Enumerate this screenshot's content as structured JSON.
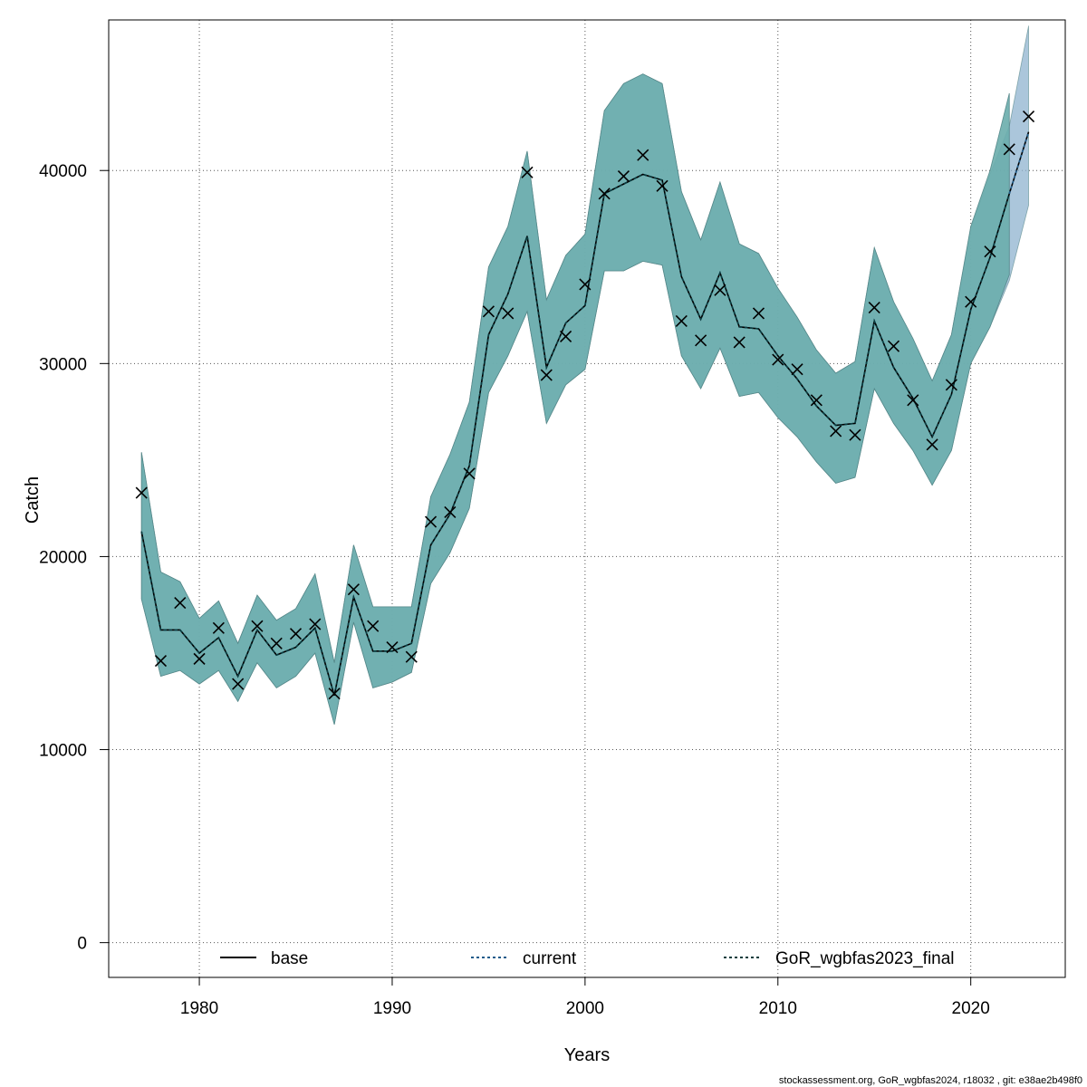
{
  "chart_data": {
    "type": "line",
    "xlabel": "Years",
    "ylabel": "Catch",
    "xlim": [
      1975.3,
      2024.9
    ],
    "ylim": [
      -1800,
      47800
    ],
    "xticks": [
      1980,
      1990,
      2000,
      2010,
      2020
    ],
    "xtick_labels": [
      "1980",
      "1990",
      "2000",
      "2010",
      "2020"
    ],
    "yticks": [
      0,
      10000,
      20000,
      30000,
      40000
    ],
    "ytick_labels": [
      "0",
      "10000",
      "20000",
      "30000",
      "40000"
    ],
    "grid": true,
    "legend_position": "bottom",
    "footer": "stockassessment.org, GoR_wgbfas2024, r18032 , git: e38ae2b498f0",
    "colors": {
      "band_base": "#6aaab1",
      "band_teal": "#6fb5a8",
      "band_blue": "#8fb3cf",
      "line": "#000000",
      "current_line": "#1f5b8a",
      "gor_line": "#0b3d3d"
    },
    "x": [
      1977,
      1978,
      1979,
      1980,
      1981,
      1982,
      1983,
      1984,
      1985,
      1986,
      1987,
      1988,
      1989,
      1990,
      1991,
      1992,
      1993,
      1994,
      1995,
      1996,
      1997,
      1998,
      1999,
      2000,
      2001,
      2002,
      2003,
      2004,
      2005,
      2006,
      2007,
      2008,
      2009,
      2010,
      2011,
      2012,
      2013,
      2014,
      2015,
      2016,
      2017,
      2018,
      2019,
      2020,
      2021,
      2022,
      2023
    ],
    "observed": [
      23300,
      14600,
      17600,
      14700,
      16300,
      13400,
      16400,
      15500,
      16000,
      16500,
      12900,
      18300,
      16400,
      15300,
      14800,
      21800,
      22300,
      24300,
      32700,
      32600,
      39900,
      29400,
      31400,
      34100,
      38800,
      39700,
      40800,
      39200,
      32200,
      31200,
      33800,
      31100,
      32600,
      30200,
      29700,
      28100,
      26500,
      26300,
      32900,
      30900,
      28100,
      25800,
      28900,
      33200,
      35800,
      41100,
      42800
    ],
    "series": [
      {
        "name": "base",
        "values": [
          21300,
          16200,
          16200,
          15000,
          15800,
          13800,
          16200,
          14900,
          15300,
          16300,
          12800,
          17900,
          15100,
          15100,
          15500,
          20600,
          22200,
          24700,
          31500,
          33600,
          36600,
          29800,
          32100,
          33000,
          38800,
          39300,
          39800,
          39500,
          34500,
          32300,
          34700,
          31900,
          31800,
          30400,
          29200,
          27800,
          26800,
          26900,
          32200,
          29800,
          28200,
          26200,
          28400,
          32800,
          35500,
          38800,
          42000
        ]
      },
      {
        "name": "current",
        "values": [
          21300,
          16200,
          16200,
          15000,
          15800,
          13800,
          16200,
          14900,
          15300,
          16300,
          12800,
          17900,
          15100,
          15100,
          15500,
          20600,
          22200,
          24700,
          31500,
          33600,
          36600,
          29800,
          32100,
          33000,
          38800,
          39300,
          39800,
          39500,
          34500,
          32300,
          34700,
          31900,
          31800,
          30400,
          29200,
          27800,
          26800,
          26900,
          32200,
          29800,
          28200,
          26200,
          28400,
          32800,
          35500,
          38800,
          42000
        ]
      },
      {
        "name": "GoR_wgbfas2023_final",
        "values": [
          21300,
          16200,
          16200,
          15000,
          15800,
          13800,
          16200,
          14900,
          15300,
          16300,
          12800,
          17900,
          15100,
          15100,
          15500,
          20600,
          22200,
          24700,
          31500,
          33600,
          36600,
          29800,
          32100,
          33000,
          38800,
          39300,
          39800,
          39500,
          34500,
          32300,
          34700,
          31900,
          31800,
          30400,
          29200,
          27800,
          26800,
          26900,
          32200,
          29800,
          28200,
          26200,
          28400,
          32800,
          35500,
          38800,
          null
        ]
      }
    ],
    "ci_base": {
      "lower": [
        17800,
        13800,
        14100,
        13400,
        14100,
        12500,
        14500,
        13200,
        13800,
        15000,
        11300,
        16600,
        13200,
        13500,
        14000,
        18600,
        20200,
        22500,
        28500,
        30400,
        32700,
        26900,
        28900,
        29700,
        34800,
        34800,
        35300,
        35100,
        30400,
        28700,
        30800,
        28300,
        28500,
        27200,
        26200,
        24900,
        23800,
        24100,
        28700,
        26900,
        25500,
        23700,
        25500,
        30000,
        31900,
        34300,
        38200
      ],
      "upper": [
        25400,
        19200,
        18700,
        16800,
        17700,
        15500,
        18000,
        16700,
        17300,
        19100,
        14500,
        20600,
        17400,
        17400,
        17400,
        23100,
        25300,
        28000,
        35000,
        37100,
        41000,
        33300,
        35600,
        36700,
        43100,
        44500,
        45000,
        44500,
        38900,
        36400,
        39400,
        36200,
        35700,
        33900,
        32400,
        30700,
        29500,
        30100,
        36000,
        33200,
        31300,
        29100,
        31500,
        37000,
        39800,
        42300,
        47500
      ]
    },
    "ci_gor": {
      "lower": [
        17800,
        13800,
        14100,
        13400,
        14100,
        12500,
        14500,
        13200,
        13800,
        15000,
        11300,
        16600,
        13200,
        13500,
        14000,
        18600,
        20200,
        22500,
        28500,
        30400,
        32700,
        26900,
        28900,
        29700,
        34800,
        34800,
        35300,
        35100,
        30400,
        28700,
        30800,
        28300,
        28500,
        27200,
        26200,
        24900,
        23800,
        24100,
        28700,
        26900,
        25500,
        23700,
        25500,
        30000,
        31900,
        34600,
        null
      ],
      "upper": [
        25400,
        19200,
        18700,
        16800,
        17700,
        15500,
        18000,
        16700,
        17300,
        19100,
        14500,
        20600,
        17400,
        17400,
        17400,
        23100,
        25300,
        28000,
        35000,
        37100,
        41000,
        33300,
        35600,
        36700,
        43100,
        44500,
        45000,
        44500,
        38900,
        36400,
        39400,
        36200,
        35700,
        33900,
        32400,
        30700,
        29500,
        30100,
        36000,
        33200,
        31300,
        29100,
        31500,
        37100,
        40000,
        44000,
        null
      ]
    },
    "legend": [
      "base",
      "current",
      "GoR_wgbfas2023_final"
    ]
  }
}
